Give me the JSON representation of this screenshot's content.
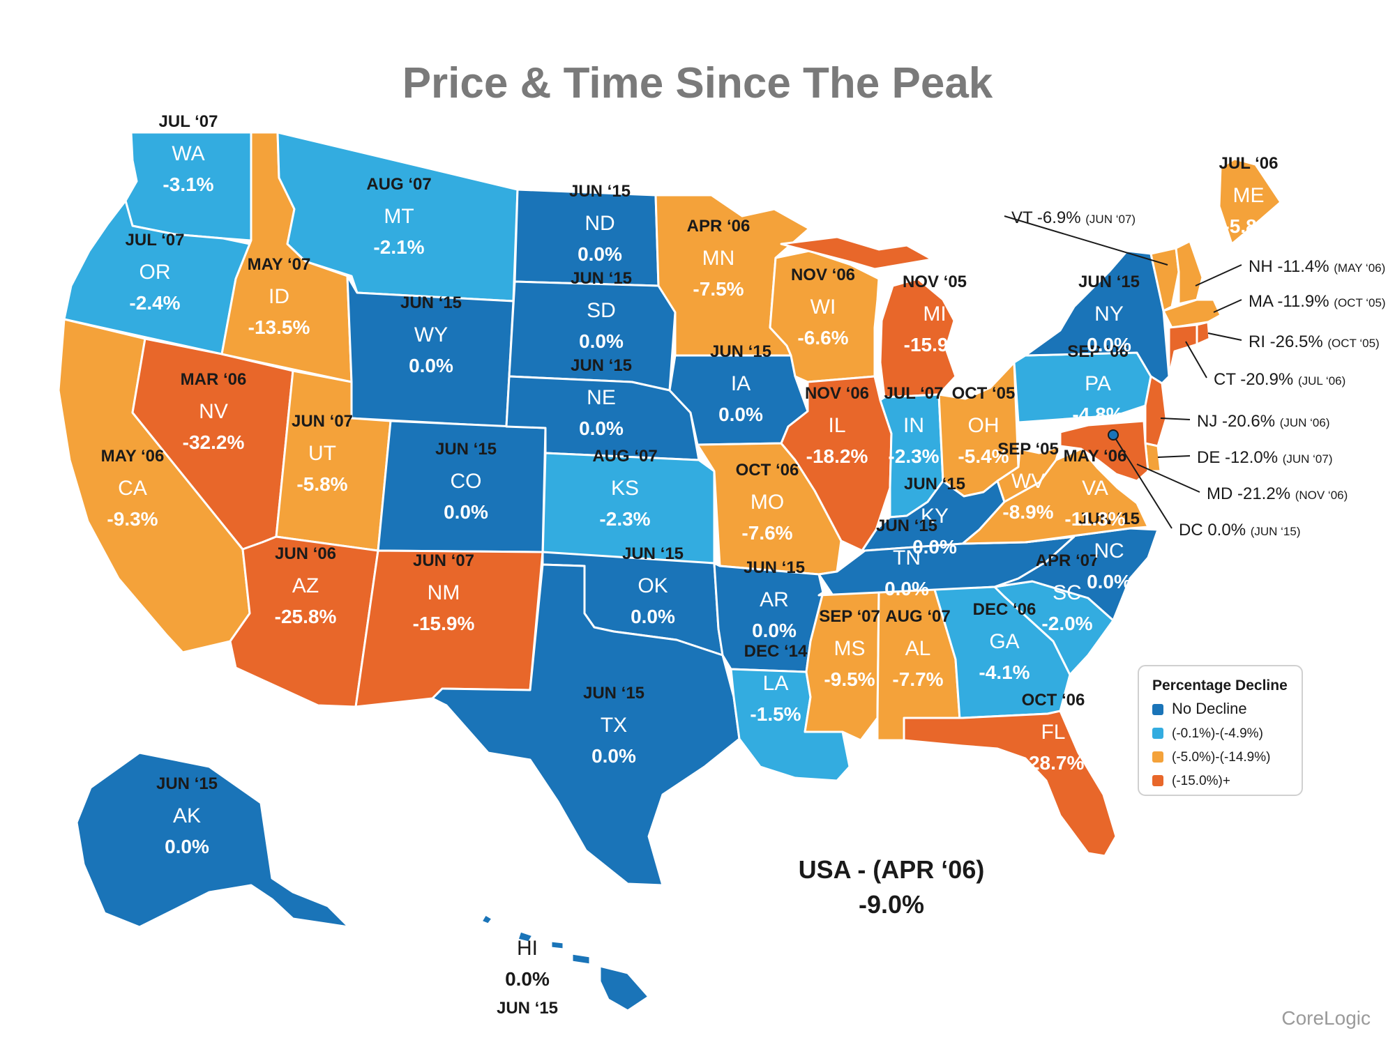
{
  "title": "Price & Time Since The Peak",
  "credit": "CoreLogic",
  "colors": {
    "no_decline": "#1a74b8",
    "light": "#33ace0",
    "orange": "#f4a23a",
    "red": "#e8672a",
    "dark_text": "#1a1a1a",
    "light_text": "#ffffff",
    "border": "#ffffff",
    "legend_border": "#d0d0d0"
  },
  "national": {
    "label": "USA - (APR ‘06)",
    "value": "-9.0%"
  },
  "legend": {
    "title": "Percentage Decline",
    "items": [
      {
        "label": "No Decline",
        "category": "no_decline"
      },
      {
        "label": "(-0.1%)-(-4.9%)",
        "category": "light"
      },
      {
        "label": "(-5.0%)-(-14.9%)",
        "category": "orange"
      },
      {
        "label": "(-15.0%)+",
        "category": "red"
      }
    ]
  },
  "states": [
    {
      "abbr": "WA",
      "peak": "JUL ‘07",
      "change": "-3.1%",
      "category": "light"
    },
    {
      "abbr": "OR",
      "peak": "JUL ‘07",
      "change": "-2.4%",
      "category": "light"
    },
    {
      "abbr": "CA",
      "peak": "MAY ‘06",
      "change": "-9.3%",
      "category": "orange"
    },
    {
      "abbr": "NV",
      "peak": "MAR ‘06",
      "change": "-32.2%",
      "category": "red"
    },
    {
      "abbr": "ID",
      "peak": "MAY ‘07",
      "change": "-13.5%",
      "category": "orange"
    },
    {
      "abbr": "MT",
      "peak": "AUG ‘07",
      "change": "-2.1%",
      "category": "light"
    },
    {
      "abbr": "WY",
      "peak": "JUN ‘15",
      "change": "0.0%",
      "category": "no_decline"
    },
    {
      "abbr": "UT",
      "peak": "JUN ‘07",
      "change": "-5.8%",
      "category": "orange"
    },
    {
      "abbr": "AZ",
      "peak": "JUN ‘06",
      "change": "-25.8%",
      "category": "red"
    },
    {
      "abbr": "CO",
      "peak": "JUN ‘15",
      "change": "0.0%",
      "category": "no_decline"
    },
    {
      "abbr": "NM",
      "peak": "JUN ‘07",
      "change": "-15.9%",
      "category": "red"
    },
    {
      "abbr": "ND",
      "peak": "JUN ‘15",
      "change": "0.0%",
      "category": "no_decline"
    },
    {
      "abbr": "SD",
      "peak": "JUN ‘15",
      "change": "0.0%",
      "category": "no_decline"
    },
    {
      "abbr": "NE",
      "peak": "JUN ‘15",
      "change": "0.0%",
      "category": "no_decline"
    },
    {
      "abbr": "KS",
      "peak": "AUG ‘07",
      "change": "-2.3%",
      "category": "light"
    },
    {
      "abbr": "OK",
      "peak": "JUN ‘15",
      "change": "0.0%",
      "category": "no_decline"
    },
    {
      "abbr": "TX",
      "peak": "JUN ‘15",
      "change": "0.0%",
      "category": "no_decline"
    },
    {
      "abbr": "MN",
      "peak": "APR ‘06",
      "change": "-7.5%",
      "category": "orange"
    },
    {
      "abbr": "IA",
      "peak": "JUN ‘15",
      "change": "0.0%",
      "category": "no_decline"
    },
    {
      "abbr": "MO",
      "peak": "OCT ‘06",
      "change": "-7.6%",
      "category": "orange"
    },
    {
      "abbr": "AR",
      "peak": "JUN ‘15",
      "change": "0.0%",
      "category": "no_decline"
    },
    {
      "abbr": "LA",
      "peak": "DEC ‘14",
      "change": "-1.5%",
      "category": "light"
    },
    {
      "abbr": "WI",
      "peak": "NOV ‘06",
      "change": "-6.6%",
      "category": "orange"
    },
    {
      "abbr": "IL",
      "peak": "NOV ‘06",
      "change": "-18.2%",
      "category": "red"
    },
    {
      "abbr": "MI",
      "peak": "NOV ‘05",
      "change": "-15.9%",
      "category": "red"
    },
    {
      "abbr": "IN",
      "peak": "JUL ‘07",
      "change": "-2.3%",
      "category": "light"
    },
    {
      "abbr": "OH",
      "peak": "OCT ‘05",
      "change": "-5.4%",
      "category": "orange"
    },
    {
      "abbr": "KY",
      "peak": "JUN ‘15",
      "change": "0.0%",
      "category": "no_decline"
    },
    {
      "abbr": "TN",
      "peak": "JUN ‘15",
      "change": "0.0%",
      "category": "no_decline"
    },
    {
      "abbr": "MS",
      "peak": "SEP ‘07",
      "change": "-9.5%",
      "category": "orange"
    },
    {
      "abbr": "AL",
      "peak": "AUG ‘07",
      "change": "-7.7%",
      "category": "orange"
    },
    {
      "abbr": "GA",
      "peak": "DEC ‘06",
      "change": "-4.1%",
      "category": "light"
    },
    {
      "abbr": "FL",
      "peak": "OCT ‘06",
      "change": "-28.7%",
      "category": "red"
    },
    {
      "abbr": "SC",
      "peak": "APR ‘07",
      "change": "-2.0%",
      "category": "light"
    },
    {
      "abbr": "NC",
      "peak": "JUN ‘15",
      "change": "0.0%",
      "category": "no_decline"
    },
    {
      "abbr": "VA",
      "peak": "MAY ‘06",
      "change": "-11.3%",
      "category": "orange"
    },
    {
      "abbr": "WV",
      "peak": "SEP ‘05",
      "change": "-8.9%",
      "category": "orange"
    },
    {
      "abbr": "PA",
      "peak": "SEP ‘06",
      "change": "-4.8%",
      "category": "light"
    },
    {
      "abbr": "NY",
      "peak": "JUN ‘15",
      "change": "0.0%",
      "category": "no_decline"
    },
    {
      "abbr": "ME",
      "peak": "JUL ‘06",
      "change": "-5.8%",
      "category": "orange"
    },
    {
      "abbr": "AK",
      "peak": "JUN ‘15",
      "change": "0.0%",
      "category": "no_decline"
    },
    {
      "abbr": "HI",
      "peak": "JUN ‘15",
      "change": "0.0%",
      "category": "no_decline"
    }
  ],
  "small_states": [
    {
      "abbr": "VT",
      "change": "-6.9%",
      "peak": "(JUN ‘07)",
      "category": "orange"
    },
    {
      "abbr": "NH",
      "change": "-11.4%",
      "peak": "(MAY ‘06)",
      "category": "orange"
    },
    {
      "abbr": "MA",
      "change": "-11.9%",
      "peak": "(OCT ‘05)",
      "category": "orange"
    },
    {
      "abbr": "RI",
      "change": "-26.5%",
      "peak": "(OCT ‘05)",
      "category": "red"
    },
    {
      "abbr": "CT",
      "change": "-20.9%",
      "peak": "(JUL ‘06)",
      "category": "red"
    },
    {
      "abbr": "NJ",
      "change": "-20.6%",
      "peak": "(JUN ‘06)",
      "category": "red"
    },
    {
      "abbr": "DE",
      "change": "-12.0%",
      "peak": "(JUN ‘07)",
      "category": "orange"
    },
    {
      "abbr": "MD",
      "change": "-21.2%",
      "peak": "(NOV ‘06)",
      "category": "red"
    },
    {
      "abbr": "DC",
      "change": "0.0%",
      "peak": "(JUN ‘15)",
      "category": "no_decline"
    }
  ]
}
